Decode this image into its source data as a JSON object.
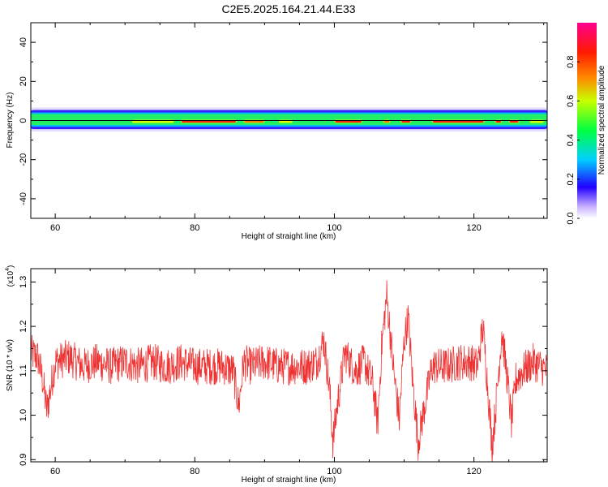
{
  "title": "C2E5.2025.164.21.44.E33",
  "colors": {
    "snr_line": "#ee3333",
    "zero_line": "#000000"
  },
  "chart_data": [
    {
      "type": "heatmap",
      "title": "C2E5.2025.164.21.44.E33",
      "xlabel": "Height of straight line (km)",
      "ylabel": "Frequency (Hz)",
      "xlim": [
        56.5,
        130.5
      ],
      "ylim": [
        -50,
        50
      ],
      "x_ticks": [
        60,
        80,
        100,
        120
      ],
      "x_tick_labels": [
        "60",
        "80",
        "100",
        "120"
      ],
      "y_ticks": [
        -40,
        -20,
        0,
        20,
        40
      ],
      "y_tick_labels": [
        "-40",
        "-20",
        "0",
        "20",
        "40"
      ],
      "colorbar": {
        "label": "Normalized spectral amplitude",
        "range": [
          0,
          1
        ],
        "ticks": [
          0.0,
          0.2,
          0.4,
          0.6,
          0.8
        ],
        "tick_labels": [
          "0.0",
          "0.2",
          "0.4",
          "0.6",
          "0.8"
        ],
        "colormap": "rainbow"
      },
      "zero_line_hz": 0,
      "energy_band_hz": [
        -4,
        5
      ],
      "peak_segments_km": [
        [
          71,
          77
        ],
        [
          78,
          86
        ],
        [
          87,
          90
        ],
        [
          92,
          94
        ],
        [
          100,
          104
        ],
        [
          107,
          108
        ],
        [
          109.5,
          111
        ],
        [
          114,
          121.5
        ],
        [
          123,
          124
        ],
        [
          125,
          126.5
        ],
        [
          128,
          130
        ]
      ],
      "peak_values": [
        0.6,
        0.88,
        0.85,
        0.7,
        0.88,
        0.8,
        0.9,
        0.88,
        0.9,
        0.92,
        0.75
      ]
    },
    {
      "type": "line",
      "xlabel": "Height of straight line (km)",
      "ylabel": "SNR (10 * v/v)",
      "yscale_label": "(x10",
      "yscale_exp": "4",
      "yscale_close": ")",
      "xlim": [
        56.5,
        130.5
      ],
      "ylim": [
        0.895,
        1.33
      ],
      "x_ticks": [
        60,
        80,
        100,
        120
      ],
      "x_tick_labels": [
        "60",
        "80",
        "100",
        "120"
      ],
      "y_ticks": [
        0.9,
        1.0,
        1.1,
        1.2,
        1.3
      ],
      "y_tick_labels": [
        "0.9",
        "1.0",
        "1.1",
        "1.2",
        "1.3"
      ],
      "series": [
        {
          "x": [
            56.5,
            57.5,
            58.2,
            58.8,
            60,
            62,
            64,
            66,
            68,
            70,
            72,
            74,
            76,
            78,
            80,
            82,
            84,
            85.5,
            86.3,
            87,
            88,
            90,
            92,
            94,
            96,
            97.5,
            98.5,
            99.3,
            99.8,
            100.4,
            101.5,
            103,
            104.3,
            105.5,
            106.2,
            106.8,
            107.5,
            108.5,
            109.3,
            110,
            110.6,
            111.2,
            112,
            114,
            116,
            118,
            119.5,
            120.5,
            121.3,
            122,
            122.6,
            123.2,
            124,
            124.8,
            125.4,
            126,
            127,
            128.5,
            130.5
          ],
          "y": [
            1.14,
            1.13,
            1.08,
            1.01,
            1.12,
            1.13,
            1.11,
            1.12,
            1.11,
            1.12,
            1.11,
            1.12,
            1.11,
            1.12,
            1.11,
            1.11,
            1.11,
            1.1,
            1.02,
            1.12,
            1.11,
            1.12,
            1.11,
            1.11,
            1.11,
            1.12,
            1.17,
            1.06,
            0.94,
            1.02,
            1.14,
            1.1,
            1.12,
            1.07,
            0.98,
            1.16,
            1.27,
            1.1,
            0.99,
            1.17,
            1.22,
            1.08,
            0.94,
            1.11,
            1.11,
            1.12,
            1.12,
            1.11,
            1.2,
            1.06,
            0.93,
            1.03,
            1.19,
            1.08,
            0.98,
            1.08,
            1.1,
            1.12,
            1.1
          ]
        }
      ]
    }
  ]
}
